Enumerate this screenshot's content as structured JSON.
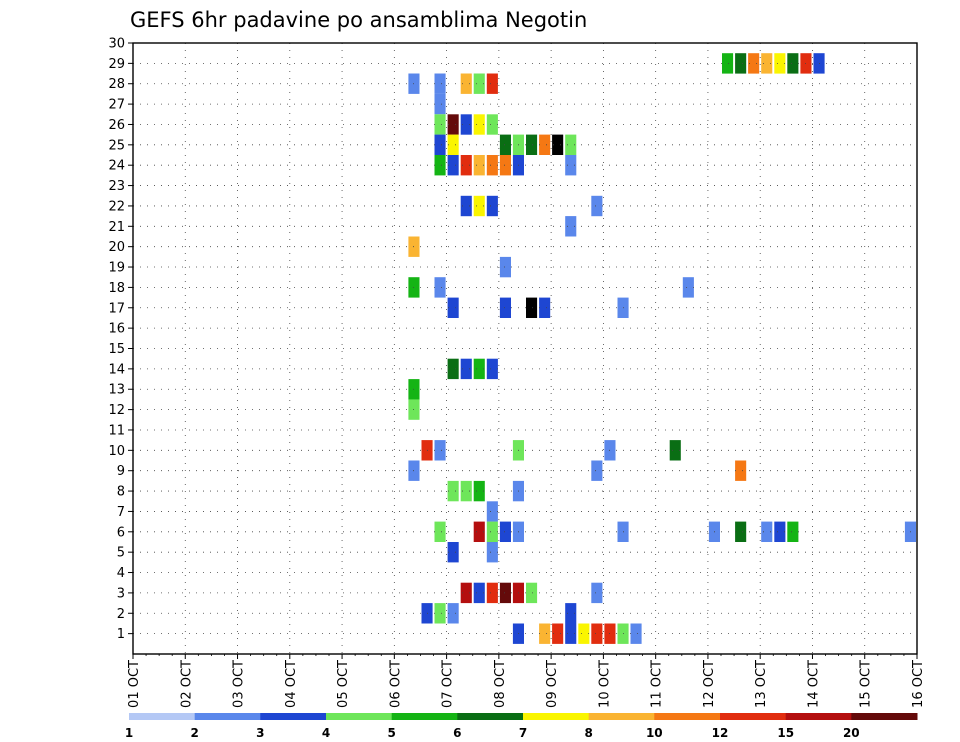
{
  "chart_data": {
    "type": "heatmap",
    "title": "GEFS 6hr padavine po ansamblima Negotin",
    "xlabel": "",
    "ylabel": "",
    "x_tick_labels": [
      "01 OCT",
      "02 OCT",
      "03 OCT",
      "04 OCT",
      "05 OCT",
      "06 OCT",
      "07 OCT",
      "08 OCT",
      "09 OCT",
      "10 OCT",
      "11 OCT",
      "12 OCT",
      "13 OCT",
      "14 OCT",
      "15 OCT",
      "16 OCT"
    ],
    "y_tick_labels": [
      "1",
      "2",
      "3",
      "4",
      "5",
      "6",
      "7",
      "8",
      "9",
      "10",
      "11",
      "12",
      "13",
      "14",
      "15",
      "16",
      "17",
      "18",
      "19",
      "20",
      "21",
      "22",
      "23",
      "24",
      "25",
      "26",
      "27",
      "28",
      "29",
      "30"
    ],
    "x_unit": "6-hour step from 01 OCT 00z",
    "xlim": [
      0,
      60
    ],
    "ylim": [
      0,
      30
    ],
    "grid": true,
    "legend": {
      "placement": "bottom",
      "labels": [
        "1",
        "2",
        "3",
        "4",
        "5",
        "6",
        "7",
        "8",
        "10",
        "12",
        "15",
        "20"
      ],
      "colors": [
        "#b4c8f5",
        "#5a87eb",
        "#1e46d2",
        "#6ee65a",
        "#14b414",
        "#0a6e14",
        "#faf500",
        "#fab432",
        "#f57814",
        "#e12d0f",
        "#b40f0f",
        "#640a0a"
      ]
    },
    "cells": [
      [
        29,
        45,
        4
      ],
      [
        29,
        46,
        5
      ],
      [
        29,
        47,
        8
      ],
      [
        29,
        48,
        7
      ],
      [
        29,
        49,
        6
      ],
      [
        29,
        50,
        5
      ],
      [
        29,
        51,
        9
      ],
      [
        29,
        52,
        2
      ],
      [
        28,
        21,
        1
      ],
      [
        28,
        23,
        1
      ],
      [
        28,
        25,
        7
      ],
      [
        28,
        26,
        3
      ],
      [
        28,
        27,
        9
      ],
      [
        27,
        23,
        1
      ],
      [
        26,
        23,
        3
      ],
      [
        26,
        24,
        11
      ],
      [
        26,
        25,
        2
      ],
      [
        26,
        26,
        6
      ],
      [
        26,
        27,
        3
      ],
      [
        25,
        23,
        2
      ],
      [
        25,
        24,
        6
      ],
      [
        25,
        28,
        5
      ],
      [
        25,
        29,
        3
      ],
      [
        25,
        30,
        5
      ],
      [
        25,
        31,
        8
      ],
      [
        25,
        32,
        12
      ],
      [
        25,
        33,
        3
      ],
      [
        24,
        23,
        4
      ],
      [
        24,
        24,
        2
      ],
      [
        24,
        25,
        9
      ],
      [
        24,
        26,
        7
      ],
      [
        24,
        27,
        8
      ],
      [
        24,
        28,
        8
      ],
      [
        24,
        29,
        2
      ],
      [
        24,
        33,
        1
      ],
      [
        22,
        25,
        2
      ],
      [
        22,
        26,
        6
      ],
      [
        22,
        27,
        2
      ],
      [
        22,
        35,
        1
      ],
      [
        21,
        33,
        1
      ],
      [
        20,
        21,
        7
      ],
      [
        19,
        28,
        1
      ],
      [
        18,
        21,
        4
      ],
      [
        18,
        23,
        1
      ],
      [
        18,
        42,
        1
      ],
      [
        17,
        24,
        2
      ],
      [
        17,
        28,
        2
      ],
      [
        17,
        30,
        12
      ],
      [
        17,
        31,
        2
      ],
      [
        17,
        37,
        1
      ],
      [
        14,
        24,
        5
      ],
      [
        14,
        25,
        2
      ],
      [
        14,
        26,
        4
      ],
      [
        14,
        27,
        2
      ],
      [
        13,
        21,
        4
      ],
      [
        12,
        21,
        3
      ],
      [
        10,
        22,
        9
      ],
      [
        10,
        23,
        1
      ],
      [
        10,
        29,
        3
      ],
      [
        10,
        36,
        1
      ],
      [
        10,
        41,
        5
      ],
      [
        9,
        21,
        1
      ],
      [
        9,
        35,
        1
      ],
      [
        9,
        46,
        8
      ],
      [
        8,
        24,
        3
      ],
      [
        8,
        25,
        3
      ],
      [
        8,
        26,
        4
      ],
      [
        8,
        29,
        1
      ],
      [
        7,
        27,
        1
      ],
      [
        6,
        23,
        3
      ],
      [
        6,
        26,
        10
      ],
      [
        6,
        27,
        3
      ],
      [
        6,
        28,
        2
      ],
      [
        6,
        29,
        1
      ],
      [
        6,
        37,
        1
      ],
      [
        6,
        44,
        1
      ],
      [
        6,
        46,
        5
      ],
      [
        6,
        48,
        1
      ],
      [
        6,
        49,
        2
      ],
      [
        6,
        50,
        4
      ],
      [
        6,
        59,
        1
      ],
      [
        5,
        24,
        2
      ],
      [
        5,
        27,
        1
      ],
      [
        3,
        25,
        10
      ],
      [
        3,
        26,
        2
      ],
      [
        3,
        27,
        9
      ],
      [
        3,
        28,
        11
      ],
      [
        3,
        29,
        10
      ],
      [
        3,
        30,
        3
      ],
      [
        3,
        35,
        1
      ],
      [
        2,
        22,
        2
      ],
      [
        2,
        23,
        3
      ],
      [
        2,
        24,
        1
      ],
      [
        2,
        33,
        2
      ],
      [
        1,
        29,
        2
      ],
      [
        1,
        31,
        7
      ],
      [
        1,
        32,
        9
      ],
      [
        1,
        33,
        2
      ],
      [
        1,
        34,
        6
      ],
      [
        1,
        35,
        9
      ],
      [
        1,
        36,
        9
      ],
      [
        1,
        37,
        3
      ],
      [
        1,
        38,
        1
      ]
    ]
  }
}
